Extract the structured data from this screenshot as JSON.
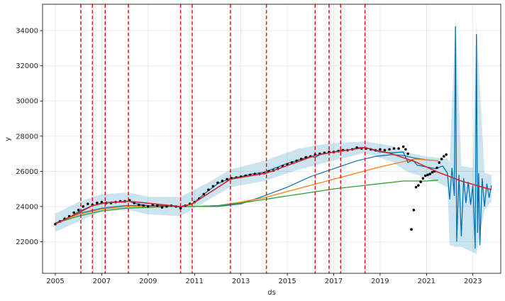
{
  "chart_data": {
    "type": "line",
    "xlabel": "ds",
    "ylabel": "y",
    "xlim": [
      2004.45,
      2024.2
    ],
    "ylim": [
      20200,
      35500
    ],
    "x_ticks": [
      2005,
      2007,
      2009,
      2011,
      2013,
      2015,
      2017,
      2019,
      2021,
      2023
    ],
    "x_tick_labels": [
      "2005",
      "2007",
      "2009",
      "2011",
      "2013",
      "2015",
      "2017",
      "2019",
      "2021",
      "2023"
    ],
    "y_ticks": [
      22000,
      24000,
      26000,
      28000,
      30000,
      32000,
      34000
    ],
    "y_tick_labels": [
      "22000",
      "24000",
      "26000",
      "28000",
      "30000",
      "32000",
      "34000"
    ],
    "grid": true,
    "colors": {
      "forecast": "#0072B2",
      "band": "#0072B2",
      "trend": "#d62728",
      "changepoint": "#ff0000",
      "points": "#000000",
      "line_orange": "#ff7f0e",
      "line_green": "#2ca02c",
      "line_blue": "#1f77b4"
    },
    "changepoints": [
      2006.1,
      2006.6,
      2007.15,
      2008.15,
      2010.4,
      2010.9,
      2012.55,
      2014.1,
      2016.2,
      2016.8,
      2017.3,
      2018.35
    ],
    "forecast": {
      "x": [
        2005.0,
        2005.5,
        2006.0,
        2006.5,
        2007.0,
        2007.5,
        2008.0,
        2008.15,
        2008.5,
        2009.0,
        2009.5,
        2010.0,
        2010.4,
        2010.9,
        2011.5,
        2012.0,
        2012.55,
        2013.0,
        2013.5,
        2014.0,
        2014.5,
        2015.0,
        2015.5,
        2016.0,
        2016.2,
        2016.5,
        2016.8,
        2017.0,
        2017.3,
        2017.5,
        2017.8,
        2018.0,
        2018.35,
        2018.6,
        2019.0,
        2019.5,
        2020.0,
        2020.2,
        2020.4,
        2020.6,
        2021.0,
        2021.4,
        2021.7,
        2021.9,
        2022.0,
        2022.1,
        2022.2,
        2022.25,
        2022.3,
        2022.4,
        2022.5,
        2022.6,
        2022.7,
        2022.8,
        2022.9,
        2023.0,
        2023.1,
        2023.15,
        2023.2,
        2023.25,
        2023.3,
        2023.4,
        2023.5,
        2023.6,
        2023.7,
        2023.8
      ],
      "y": [
        23050,
        23300,
        23700,
        24000,
        24200,
        24250,
        24250,
        24300,
        24150,
        24050,
        24050,
        24050,
        23950,
        24150,
        24800,
        25300,
        25600,
        25700,
        25850,
        25950,
        26200,
        26450,
        26650,
        26850,
        26800,
        27000,
        27050,
        27100,
        27200,
        27200,
        27250,
        27350,
        27350,
        27250,
        27100,
        27050,
        27100,
        26500,
        26650,
        26350,
        26250,
        26150,
        26300,
        25900,
        24400,
        26200,
        24600,
        34250,
        22000,
        25800,
        22300,
        25600,
        24200,
        25400,
        24100,
        25200,
        21600,
        33800,
        22500,
        25900,
        21800,
        25600,
        24000,
        25300,
        24500,
        25200
      ]
    },
    "forecast_band": {
      "x": [
        2005.0,
        2006.0,
        2007.0,
        2008.15,
        2009.0,
        2010.4,
        2011.5,
        2012.55,
        2014.0,
        2015.5,
        2016.8,
        2018.35,
        2019.5,
        2020.2,
        2021.0,
        2021.9,
        2022.0,
        2022.25,
        2022.5,
        2023.0,
        2023.15,
        2023.5,
        2023.8
      ],
      "upper": [
        23600,
        24250,
        24700,
        24800,
        24550,
        24550,
        25300,
        26100,
        26600,
        27300,
        27600,
        27700,
        27450,
        27050,
        26850,
        26700,
        26500,
        34750,
        26300,
        26200,
        34400,
        25900,
        25800
      ],
      "lower": [
        22550,
        23150,
        23700,
        23800,
        23550,
        23450,
        24300,
        25100,
        25450,
        26100,
        26550,
        27050,
        26550,
        25950,
        25650,
        25100,
        21800,
        21700,
        21700,
        21400,
        21300,
        23800,
        24300
      ]
    },
    "trend": {
      "x": [
        2005.0,
        2006.1,
        2006.6,
        2007.15,
        2008.15,
        2010.4,
        2010.9,
        2012.55,
        2014.1,
        2016.2,
        2016.8,
        2017.3,
        2018.35,
        2019.5,
        2020.5,
        2021.5,
        2022.5,
        2023.8
      ],
      "y": [
        23000,
        23700,
        24050,
        24200,
        24300,
        24000,
        24150,
        25550,
        25900,
        26900,
        27050,
        27150,
        27350,
        27000,
        26550,
        25950,
        25450,
        24950
      ]
    },
    "observed": {
      "x": [
        2005.0,
        2005.2,
        2005.4,
        2005.6,
        2005.8,
        2006.0,
        2006.2,
        2006.4,
        2006.6,
        2006.8,
        2007.0,
        2007.2,
        2007.4,
        2007.6,
        2007.8,
        2008.0,
        2008.2,
        2008.4,
        2008.6,
        2008.8,
        2009.0,
        2009.2,
        2009.4,
        2009.6,
        2009.8,
        2010.0,
        2010.2,
        2010.4,
        2010.6,
        2010.8,
        2011.0,
        2011.2,
        2011.4,
        2011.6,
        2011.8,
        2012.0,
        2012.2,
        2012.4,
        2012.6,
        2012.8,
        2013.0,
        2013.2,
        2013.4,
        2013.6,
        2013.8,
        2014.0,
        2014.2,
        2014.4,
        2014.6,
        2014.8,
        2015.0,
        2015.2,
        2015.4,
        2015.6,
        2015.8,
        2016.0,
        2016.2,
        2016.4,
        2016.6,
        2016.8,
        2017.0,
        2017.2,
        2017.4,
        2017.6,
        2017.8,
        2018.0,
        2018.2,
        2018.4,
        2018.6,
        2018.8,
        2019.0,
        2019.2,
        2019.4,
        2019.6,
        2019.8,
        2020.0,
        2020.1,
        2020.2,
        2020.35,
        2020.45,
        2020.55,
        2020.65,
        2020.75,
        2020.85,
        2020.95,
        2021.05,
        2021.15,
        2021.25,
        2021.35,
        2021.45,
        2021.55,
        2021.65,
        2021.75,
        2021.85
      ],
      "y": [
        23000,
        23150,
        23300,
        23450,
        23650,
        23800,
        24000,
        24150,
        24100,
        24200,
        24250,
        24200,
        24200,
        24250,
        24300,
        24300,
        24350,
        24200,
        24100,
        24050,
        24000,
        24100,
        24050,
        23950,
        24000,
        24050,
        24000,
        23900,
        24050,
        24150,
        24250,
        24450,
        24700,
        24950,
        25150,
        25350,
        25450,
        25550,
        25600,
        25650,
        25700,
        25750,
        25800,
        25850,
        25850,
        25900,
        26000,
        26050,
        26150,
        26300,
        26400,
        26500,
        26600,
        26700,
        26800,
        26850,
        26950,
        27000,
        27050,
        27100,
        27100,
        27150,
        27200,
        27200,
        27250,
        27350,
        27300,
        27300,
        27250,
        27200,
        27250,
        27200,
        27250,
        27300,
        27300,
        27400,
        27250,
        27000,
        22700,
        23800,
        25100,
        25200,
        25400,
        25600,
        25750,
        25800,
        25850,
        25950,
        26000,
        26200,
        26500,
        26700,
        26850,
        26950
      ]
    },
    "series": [
      {
        "x": [
          2005.0,
          2006.0,
          2007.0,
          2008.0,
          2009.0,
          2010.0,
          2011.0,
          2012.0,
          2013.0,
          2014.0,
          2015.0,
          2016.0,
          2017.0,
          2018.0,
          2018.8,
          2019.5,
          2020.0,
          2020.5,
          2021.0,
          2021.5
        ],
        "y": [
          23050,
          23600,
          23900,
          24050,
          24050,
          24000,
          24000,
          24000,
          24150,
          24600,
          25100,
          25700,
          26150,
          26600,
          26850,
          26950,
          26900,
          26750,
          26650,
          26600
        ]
      },
      {
        "x": [
          2005.0,
          2006.0,
          2007.0,
          2008.0,
          2009.0,
          2010.0,
          2011.0,
          2012.0,
          2013.0,
          2014.0,
          2015.0,
          2016.0,
          2017.0,
          2018.0,
          2019.0,
          2020.0,
          2020.5,
          2021.0,
          2021.5
        ],
        "y": [
          23050,
          23550,
          23850,
          24000,
          24000,
          24000,
          24000,
          24050,
          24250,
          24500,
          24850,
          25200,
          25550,
          25900,
          26250,
          26550,
          26700,
          26650,
          26600
        ]
      },
      {
        "x": [
          2005.0,
          2006.0,
          2007.0,
          2008.0,
          2009.0,
          2010.0,
          2011.0,
          2012.0,
          2013.0,
          2014.0,
          2015.0,
          2016.0,
          2017.0,
          2018.0,
          2019.0,
          2020.0,
          2020.5,
          2021.0,
          2021.5
        ],
        "y": [
          23050,
          23450,
          23750,
          23900,
          23950,
          24000,
          24000,
          24050,
          24200,
          24400,
          24600,
          24800,
          25000,
          25150,
          25300,
          25450,
          25450,
          25450,
          25500
        ]
      }
    ]
  }
}
